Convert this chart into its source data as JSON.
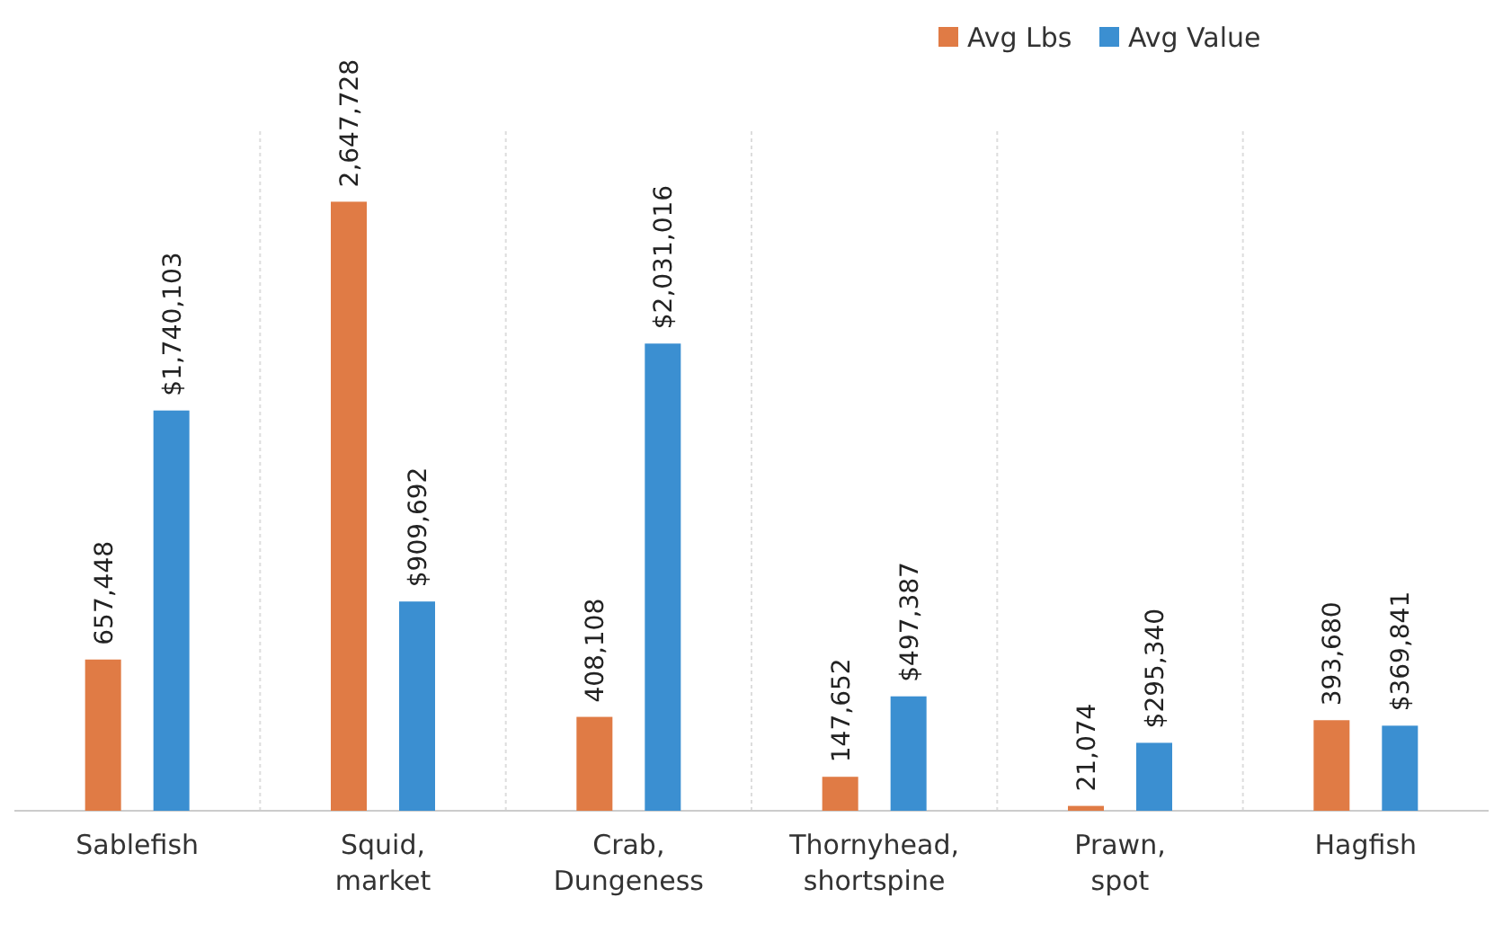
{
  "chart_data": {
    "type": "bar",
    "categories": [
      "Sablefish",
      "Squid, market",
      "Crab, Dungeness",
      "Thornyhead, shortspine",
      "Prawn, spot",
      "Hagfish"
    ],
    "series": [
      {
        "name": "Avg Lbs",
        "color": "#e07b45",
        "values": [
          657448,
          2647728,
          408108,
          147652,
          21074,
          393680
        ],
        "value_labels": [
          "657,448",
          "2,647,728",
          "408,108",
          "147,652",
          "21,074",
          "393,680"
        ]
      },
      {
        "name": "Avg Value",
        "color": "#3b8fd1",
        "values": [
          1740103,
          909692,
          2031016,
          497387,
          295340,
          369841
        ],
        "value_labels": [
          "$1,740,103",
          "$909,692",
          "$2,031,016",
          "$497,387",
          "$295,340",
          "$369,841"
        ]
      }
    ],
    "grid": "x",
    "legend": "top right"
  }
}
